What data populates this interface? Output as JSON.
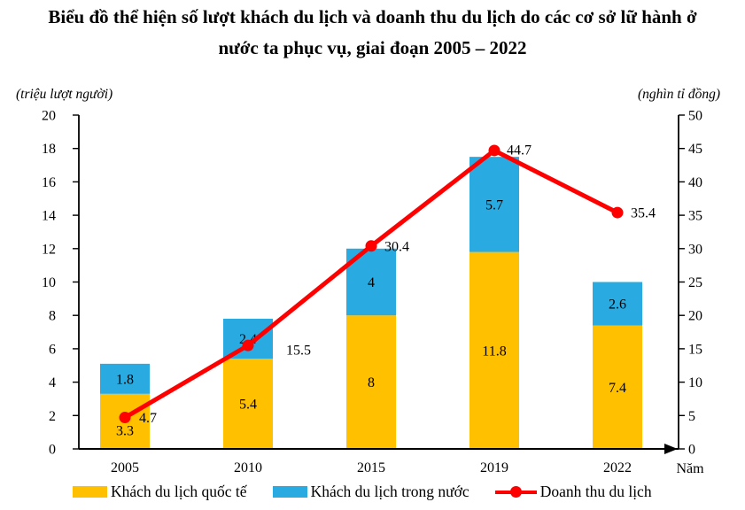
{
  "title": {
    "line1": "Biểu đồ thể hiện số lượt khách du lịch và doanh thu du lịch do các cơ sở lữ hành ở",
    "line2": "nước ta phục vụ, giai đoạn 2005 – 2022"
  },
  "legend": [
    {
      "label": "Khách du lịch quốc tế",
      "color": "#FFC000",
      "marker": "rect"
    },
    {
      "label": "Khách du lịch trong nước",
      "color": "#29ABE2",
      "marker": "rect"
    },
    {
      "label": "Doanh thu du lịch",
      "color": "#FF0000",
      "marker": "line-dot"
    }
  ],
  "chart_data": {
    "type": "bar+line",
    "categories": [
      "2005",
      "2010",
      "2015",
      "2019",
      "2022"
    ],
    "series": [
      {
        "name": "Khách du lịch quốc tế",
        "type": "bar",
        "stack": true,
        "axis": "left",
        "color": "#FFC000",
        "values": [
          3.3,
          5.4,
          8,
          11.8,
          7.4
        ]
      },
      {
        "name": "Khách du lịch trong nước",
        "type": "bar",
        "stack": true,
        "axis": "left",
        "color": "#29ABE2",
        "values": [
          1.8,
          2.4,
          4,
          5.7,
          2.6
        ]
      },
      {
        "name": "Doanh thu du lịch",
        "type": "line",
        "axis": "right",
        "color": "#FF0000",
        "values": [
          4.7,
          15.5,
          30.4,
          44.7,
          35.4
        ]
      }
    ],
    "left_axis": {
      "label": "(triệu lượt người)",
      "min": 0,
      "max": 20,
      "step": 2,
      "ticks": [
        0,
        2,
        4,
        6,
        8,
        10,
        12,
        14,
        16,
        18,
        20
      ]
    },
    "right_axis": {
      "label": "(nghìn tỉ đồng)",
      "min": 0,
      "max": 50,
      "step": 5,
      "ticks": [
        0,
        5,
        10,
        15,
        20,
        25,
        30,
        35,
        40,
        45,
        50
      ]
    },
    "xlabel": "Năm",
    "grid": false,
    "legend_position": "bottom",
    "data_labels": true
  }
}
